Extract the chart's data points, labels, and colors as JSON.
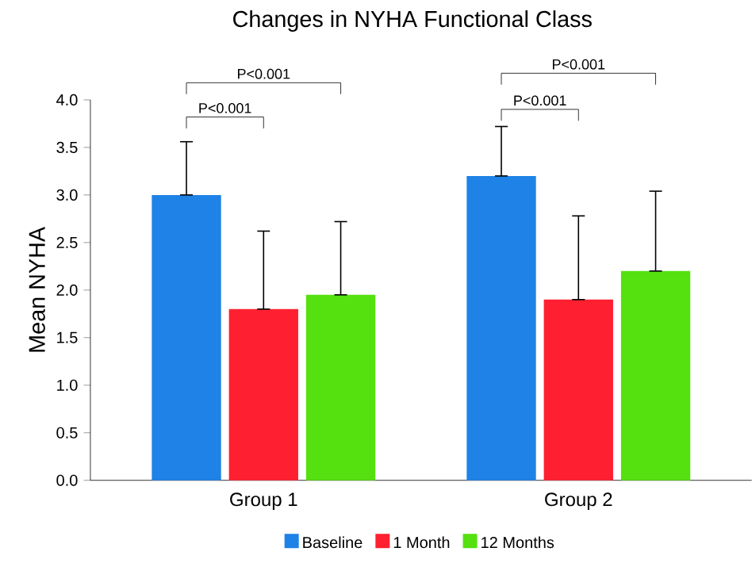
{
  "chart_data": {
    "type": "bar",
    "title": "Changes in NYHA Functional Class",
    "ylabel": "Mean NYHA",
    "categories": [
      "Group 1",
      "Group 2"
    ],
    "series": [
      {
        "name": "Baseline",
        "color": "#1e82e6",
        "values": [
          3.0,
          3.2
        ],
        "errors": [
          [
            3.0,
            3.56
          ],
          [
            3.2,
            3.72
          ]
        ]
      },
      {
        "name": "1 Month",
        "color": "#fe2030",
        "values": [
          1.8,
          1.9
        ],
        "errors": [
          [
            1.8,
            2.62
          ],
          [
            1.9,
            2.78
          ]
        ]
      },
      {
        "name": "12 Months",
        "color": "#55e010",
        "values": [
          1.95,
          2.2
        ],
        "errors": [
          [
            1.95,
            2.72
          ],
          [
            2.2,
            3.04
          ]
        ]
      }
    ],
    "ylim": [
      0,
      4.0
    ],
    "yticks": [
      {
        "value": 0,
        "label": "0.0"
      },
      {
        "value": 0.5,
        "label": "0.5"
      },
      {
        "value": 1,
        "label": "1.0"
      },
      {
        "value": 1.5,
        "label": "1.5"
      },
      {
        "value": 2,
        "label": "2.0"
      },
      {
        "value": 2.5,
        "label": "2.5"
      },
      {
        "value": 3,
        "label": "3.0"
      },
      {
        "value": 3.5,
        "label": "3.5"
      },
      {
        "value": 4,
        "label": "4.0"
      }
    ],
    "grid": false,
    "legend": "bottom",
    "annotations": [
      "P<0.001",
      "P<0.001",
      "P<0.001",
      "P<0.001"
    ]
  }
}
